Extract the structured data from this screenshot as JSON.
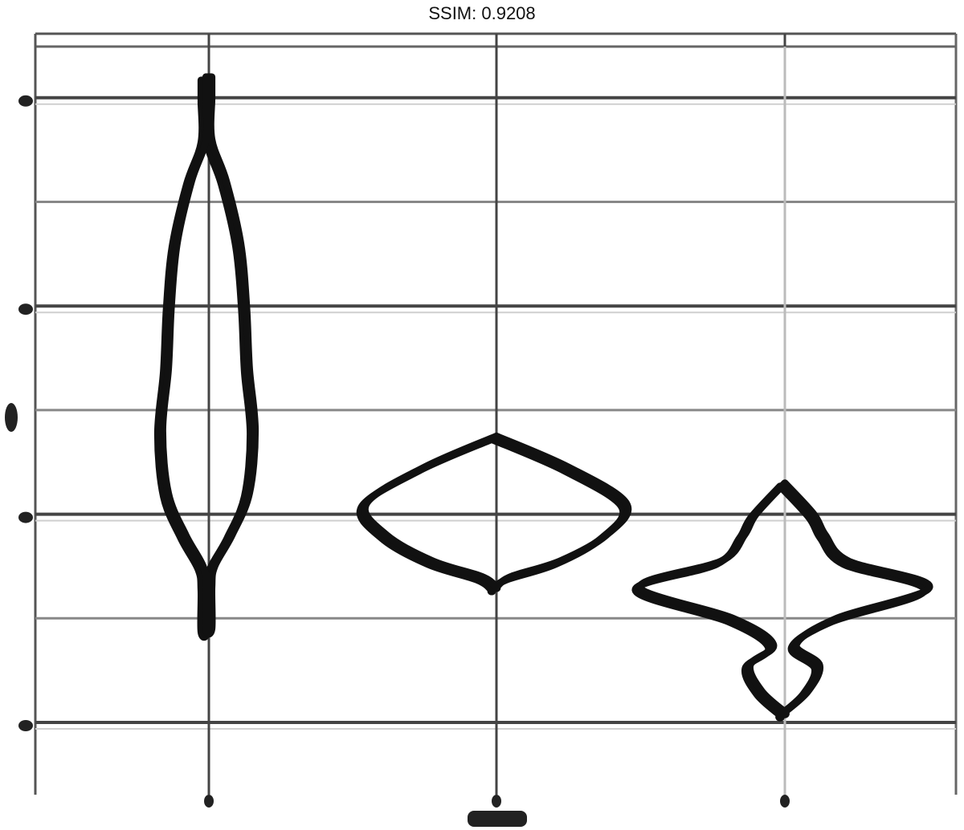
{
  "chart_data": {
    "type": "violin",
    "title": "SSIM: 0.9208",
    "xlabel": "",
    "ylabel": "",
    "categories": [
      "",
      "",
      ""
    ],
    "ylim": [
      0,
      8
    ],
    "grid": true,
    "legend": "none",
    "violins": [
      {
        "name": "",
        "center_x": 0,
        "shape": [
          {
            "y": 7.2,
            "half_width": 0.01
          },
          {
            "y": 7.0,
            "half_width": 0.01
          },
          {
            "y": 6.6,
            "half_width": 0.01
          },
          {
            "y": 6.2,
            "half_width": 0.06
          },
          {
            "y": 5.6,
            "half_width": 0.11
          },
          {
            "y": 5.0,
            "half_width": 0.13
          },
          {
            "y": 4.4,
            "half_width": 0.14
          },
          {
            "y": 3.8,
            "half_width": 0.16
          },
          {
            "y": 3.2,
            "half_width": 0.14
          },
          {
            "y": 2.8,
            "half_width": 0.08
          },
          {
            "y": 2.5,
            "half_width": 0.02
          },
          {
            "y": 2.3,
            "half_width": 0.01
          },
          {
            "y": 1.9,
            "half_width": 0.01
          }
        ]
      },
      {
        "name": "",
        "center_x": 1,
        "shape": [
          {
            "y": 3.75,
            "half_width": 0.0
          },
          {
            "y": 3.45,
            "half_width": 0.25
          },
          {
            "y": 3.1,
            "half_width": 0.45
          },
          {
            "y": 2.8,
            "half_width": 0.38
          },
          {
            "y": 2.55,
            "half_width": 0.22
          },
          {
            "y": 2.4,
            "half_width": 0.05
          },
          {
            "y": 2.3,
            "half_width": 0.0
          }
        ]
      },
      {
        "name": "",
        "center_x": 2,
        "shape": [
          {
            "y": 3.3,
            "half_width": 0.0
          },
          {
            "y": 3.0,
            "half_width": 0.1
          },
          {
            "y": 2.8,
            "half_width": 0.14
          },
          {
            "y": 2.55,
            "half_width": 0.22
          },
          {
            "y": 2.3,
            "half_width": 0.5
          },
          {
            "y": 2.0,
            "half_width": 0.18
          },
          {
            "y": 1.75,
            "half_width": 0.04
          },
          {
            "y": 1.55,
            "half_width": 0.12
          },
          {
            "y": 1.3,
            "half_width": 0.08
          },
          {
            "y": 1.1,
            "half_width": 0.0
          }
        ]
      }
    ]
  }
}
